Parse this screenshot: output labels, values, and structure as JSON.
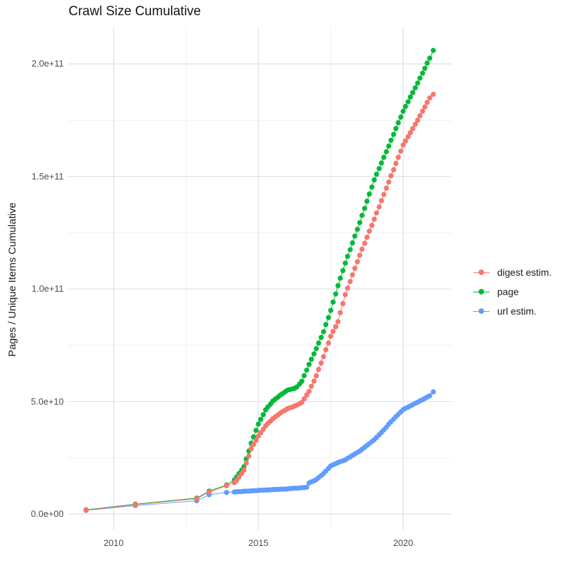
{
  "chart_data": {
    "type": "scatter",
    "title": "Crawl Size Cumulative",
    "xlabel": "",
    "ylabel": "Pages / Unique Items Cumulative",
    "value_unit": "billions (1e9) of pages / unique items",
    "grid": true,
    "legend_position": "right",
    "x_axis": {
      "range": [
        2008.42,
        2021.67
      ],
      "ticks": [
        2010,
        2015,
        2020
      ],
      "tick_labels": [
        "2010",
        "2015",
        "2020"
      ],
      "minor_ticks": [
        2012.5,
        2017.5
      ]
    },
    "y_axis": {
      "range": [
        -7.1,
        216.1
      ],
      "ticks": [
        0,
        50,
        100,
        150,
        200
      ],
      "tick_labels": [
        "0.0e+00",
        "5.0e+10",
        "1.0e+11",
        "1.5e+11",
        "2.0e+11"
      ],
      "minor_ticks": [
        25,
        75,
        125,
        175
      ]
    },
    "series": [
      {
        "name": "digest estim.",
        "color": "#F8766D",
        "points": [
          [
            2009.05,
            1.7
          ],
          [
            2010.75,
            4.2
          ],
          [
            2012.87,
            6.8
          ],
          [
            2013.3,
            9.8
          ],
          [
            2013.9,
            12.6
          ],
          [
            2014.17,
            14.0
          ],
          [
            2014.25,
            15.0
          ],
          [
            2014.33,
            16.5
          ],
          [
            2014.42,
            18.0
          ],
          [
            2014.5,
            19.5
          ],
          [
            2014.58,
            22.7
          ],
          [
            2014.67,
            25.8
          ],
          [
            2014.75,
            29.0
          ],
          [
            2014.83,
            30.9
          ],
          [
            2014.92,
            32.8
          ],
          [
            2015.0,
            34.7
          ],
          [
            2015.08,
            36.2
          ],
          [
            2015.17,
            37.7
          ],
          [
            2015.25,
            39.2
          ],
          [
            2015.33,
            40.3
          ],
          [
            2015.42,
            41.3
          ],
          [
            2015.5,
            42.4
          ],
          [
            2015.58,
            43.2
          ],
          [
            2015.67,
            44.0
          ],
          [
            2015.75,
            44.8
          ],
          [
            2015.83,
            45.5
          ],
          [
            2015.92,
            46.1
          ],
          [
            2016.0,
            46.8
          ],
          [
            2016.08,
            47.2
          ],
          [
            2016.17,
            47.5
          ],
          [
            2016.25,
            48.0
          ],
          [
            2016.33,
            48.4
          ],
          [
            2016.42,
            49.0
          ],
          [
            2016.5,
            49.6
          ],
          [
            2016.58,
            51.2
          ],
          [
            2016.67,
            52.9
          ],
          [
            2016.75,
            54.5
          ],
          [
            2016.83,
            56.8
          ],
          [
            2016.92,
            59.1
          ],
          [
            2017.0,
            61.4
          ],
          [
            2017.08,
            64.3
          ],
          [
            2017.17,
            67.1
          ],
          [
            2017.25,
            70.0
          ],
          [
            2017.33,
            73.0
          ],
          [
            2017.42,
            76.0
          ],
          [
            2017.5,
            79.0
          ],
          [
            2017.58,
            81.2
          ],
          [
            2017.67,
            83.3
          ],
          [
            2017.75,
            85.5
          ],
          [
            2017.83,
            89.5
          ],
          [
            2017.92,
            93.5
          ],
          [
            2018.0,
            97.5
          ],
          [
            2018.08,
            100.4
          ],
          [
            2018.17,
            103.3
          ],
          [
            2018.25,
            106.3
          ],
          [
            2018.33,
            109.2
          ],
          [
            2018.42,
            112.1
          ],
          [
            2018.5,
            115.0
          ],
          [
            2018.58,
            117.7
          ],
          [
            2018.67,
            120.3
          ],
          [
            2018.75,
            123.0
          ],
          [
            2018.83,
            125.7
          ],
          [
            2018.92,
            128.3
          ],
          [
            2019.0,
            131.0
          ],
          [
            2019.08,
            133.8
          ],
          [
            2019.17,
            136.5
          ],
          [
            2019.25,
            139.3
          ],
          [
            2019.33,
            142.0
          ],
          [
            2019.42,
            144.8
          ],
          [
            2019.5,
            147.5
          ],
          [
            2019.58,
            150.3
          ],
          [
            2019.67,
            153.0
          ],
          [
            2019.75,
            155.8
          ],
          [
            2019.83,
            158.5
          ],
          [
            2019.92,
            161.3
          ],
          [
            2020.0,
            164.0
          ],
          [
            2020.08,
            165.8
          ],
          [
            2020.17,
            167.7
          ],
          [
            2020.25,
            169.5
          ],
          [
            2020.33,
            171.3
          ],
          [
            2020.42,
            173.2
          ],
          [
            2020.5,
            175.0
          ],
          [
            2020.58,
            177.0
          ],
          [
            2020.67,
            179.0
          ],
          [
            2020.75,
            180.9
          ],
          [
            2020.83,
            182.9
          ],
          [
            2020.92,
            184.9
          ],
          [
            2021.04,
            186.5
          ]
        ]
      },
      {
        "name": "page",
        "color": "#00BA38",
        "points": [
          [
            2009.05,
            1.9
          ],
          [
            2010.75,
            4.4
          ],
          [
            2012.87,
            7.1
          ],
          [
            2013.3,
            10.2
          ],
          [
            2013.9,
            12.9
          ],
          [
            2014.17,
            15.2
          ],
          [
            2014.25,
            16.5
          ],
          [
            2014.33,
            18.0
          ],
          [
            2014.42,
            19.5
          ],
          [
            2014.5,
            21.0
          ],
          [
            2014.58,
            24.5
          ],
          [
            2014.67,
            28.0
          ],
          [
            2014.75,
            31.5
          ],
          [
            2014.83,
            34.3
          ],
          [
            2014.92,
            37.2
          ],
          [
            2015.0,
            40.0
          ],
          [
            2015.08,
            42.1
          ],
          [
            2015.17,
            44.2
          ],
          [
            2015.25,
            46.3
          ],
          [
            2015.33,
            47.6
          ],
          [
            2015.42,
            48.9
          ],
          [
            2015.5,
            50.2
          ],
          [
            2015.58,
            51.1
          ],
          [
            2015.67,
            51.9
          ],
          [
            2015.75,
            52.8
          ],
          [
            2015.83,
            53.5
          ],
          [
            2015.92,
            54.3
          ],
          [
            2016.0,
            55.0
          ],
          [
            2016.08,
            55.3
          ],
          [
            2016.17,
            55.6
          ],
          [
            2016.25,
            55.9
          ],
          [
            2016.33,
            56.5
          ],
          [
            2016.42,
            57.8
          ],
          [
            2016.5,
            59.0
          ],
          [
            2016.58,
            61.5
          ],
          [
            2016.67,
            64.0
          ],
          [
            2016.75,
            66.5
          ],
          [
            2016.83,
            68.8
          ],
          [
            2016.92,
            71.2
          ],
          [
            2017.0,
            73.5
          ],
          [
            2017.08,
            76.0
          ],
          [
            2017.17,
            78.5
          ],
          [
            2017.25,
            81.0
          ],
          [
            2017.33,
            84.2
          ],
          [
            2017.42,
            87.3
          ],
          [
            2017.5,
            90.5
          ],
          [
            2017.58,
            94.2
          ],
          [
            2017.67,
            97.8
          ],
          [
            2017.75,
            101.5
          ],
          [
            2017.83,
            104.8
          ],
          [
            2017.92,
            108.2
          ],
          [
            2018.0,
            111.5
          ],
          [
            2018.08,
            114.5
          ],
          [
            2018.17,
            117.5
          ],
          [
            2018.25,
            120.5
          ],
          [
            2018.33,
            123.5
          ],
          [
            2018.42,
            126.5
          ],
          [
            2018.5,
            129.5
          ],
          [
            2018.58,
            132.7
          ],
          [
            2018.67,
            135.8
          ],
          [
            2018.75,
            139.0
          ],
          [
            2018.83,
            142.2
          ],
          [
            2018.92,
            145.3
          ],
          [
            2019.0,
            148.5
          ],
          [
            2019.08,
            151.0
          ],
          [
            2019.17,
            153.5
          ],
          [
            2019.25,
            156.0
          ],
          [
            2019.33,
            158.5
          ],
          [
            2019.42,
            161.0
          ],
          [
            2019.5,
            163.5
          ],
          [
            2019.58,
            166.1
          ],
          [
            2019.67,
            168.7
          ],
          [
            2019.75,
            171.3
          ],
          [
            2019.83,
            173.9
          ],
          [
            2019.92,
            176.4
          ],
          [
            2020.0,
            179.0
          ],
          [
            2020.08,
            181.1
          ],
          [
            2020.17,
            183.2
          ],
          [
            2020.25,
            185.3
          ],
          [
            2020.33,
            187.3
          ],
          [
            2020.42,
            189.4
          ],
          [
            2020.5,
            191.5
          ],
          [
            2020.58,
            193.7
          ],
          [
            2020.67,
            195.9
          ],
          [
            2020.75,
            198.1
          ],
          [
            2020.83,
            200.4
          ],
          [
            2020.92,
            202.6
          ],
          [
            2021.04,
            206.0
          ]
        ]
      },
      {
        "name": "url estim.",
        "color": "#619CFF",
        "points": [
          [
            2009.05,
            1.6
          ],
          [
            2010.75,
            3.8
          ],
          [
            2012.87,
            5.9
          ],
          [
            2013.3,
            8.6
          ],
          [
            2013.9,
            9.6
          ],
          [
            2014.17,
            9.8
          ],
          [
            2014.25,
            9.9
          ],
          [
            2014.33,
            10.0
          ],
          [
            2014.42,
            10.0
          ],
          [
            2014.5,
            10.1
          ],
          [
            2014.58,
            10.2
          ],
          [
            2014.67,
            10.2
          ],
          [
            2014.75,
            10.3
          ],
          [
            2014.83,
            10.4
          ],
          [
            2014.92,
            10.4
          ],
          [
            2015.0,
            10.5
          ],
          [
            2015.08,
            10.6
          ],
          [
            2015.17,
            10.6
          ],
          [
            2015.25,
            10.7
          ],
          [
            2015.33,
            10.7
          ],
          [
            2015.42,
            10.8
          ],
          [
            2015.5,
            10.9
          ],
          [
            2015.58,
            10.9
          ],
          [
            2015.67,
            11.0
          ],
          [
            2015.75,
            11.0
          ],
          [
            2015.83,
            11.1
          ],
          [
            2015.92,
            11.1
          ],
          [
            2016.0,
            11.2
          ],
          [
            2016.08,
            11.3
          ],
          [
            2016.17,
            11.4
          ],
          [
            2016.25,
            11.5
          ],
          [
            2016.33,
            11.5
          ],
          [
            2016.42,
            11.6
          ],
          [
            2016.5,
            11.7
          ],
          [
            2016.58,
            11.8
          ],
          [
            2016.67,
            11.9
          ],
          [
            2016.75,
            13.8
          ],
          [
            2016.83,
            14.3
          ],
          [
            2016.92,
            14.8
          ],
          [
            2017.0,
            15.3
          ],
          [
            2017.08,
            16.2
          ],
          [
            2017.17,
            17.1
          ],
          [
            2017.25,
            18.0
          ],
          [
            2017.33,
            19.1
          ],
          [
            2017.42,
            20.3
          ],
          [
            2017.5,
            21.4
          ],
          [
            2017.58,
            21.9
          ],
          [
            2017.67,
            22.4
          ],
          [
            2017.75,
            22.9
          ],
          [
            2017.83,
            23.3
          ],
          [
            2017.92,
            23.7
          ],
          [
            2018.0,
            24.1
          ],
          [
            2018.08,
            24.8
          ],
          [
            2018.17,
            25.4
          ],
          [
            2018.25,
            26.1
          ],
          [
            2018.33,
            26.7
          ],
          [
            2018.42,
            27.4
          ],
          [
            2018.5,
            28.0
          ],
          [
            2018.58,
            28.8
          ],
          [
            2018.67,
            29.7
          ],
          [
            2018.75,
            30.5
          ],
          [
            2018.83,
            31.3
          ],
          [
            2018.92,
            32.2
          ],
          [
            2019.0,
            33.0
          ],
          [
            2019.08,
            34.1
          ],
          [
            2019.17,
            35.2
          ],
          [
            2019.25,
            36.3
          ],
          [
            2019.33,
            37.4
          ],
          [
            2019.42,
            38.6
          ],
          [
            2019.5,
            39.9
          ],
          [
            2019.58,
            41.0
          ],
          [
            2019.67,
            42.2
          ],
          [
            2019.75,
            43.3
          ],
          [
            2019.83,
            44.3
          ],
          [
            2019.92,
            45.4
          ],
          [
            2020.0,
            46.4
          ],
          [
            2020.08,
            47.0
          ],
          [
            2020.17,
            47.5
          ],
          [
            2020.25,
            48.1
          ],
          [
            2020.33,
            48.6
          ],
          [
            2020.42,
            49.2
          ],
          [
            2020.5,
            49.7
          ],
          [
            2020.58,
            50.3
          ],
          [
            2020.67,
            50.8
          ],
          [
            2020.75,
            51.4
          ],
          [
            2020.83,
            52.0
          ],
          [
            2020.92,
            52.6
          ],
          [
            2021.04,
            54.3
          ]
        ]
      }
    ],
    "style": {
      "major_grid_color": "#e3e3e3",
      "minor_grid_color": "#f0f0f0",
      "point_radius": 3.7,
      "background": "#ffffff"
    }
  }
}
